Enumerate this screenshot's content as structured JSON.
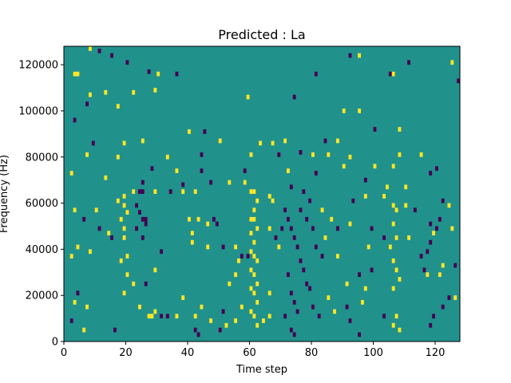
{
  "chart_data": {
    "type": "heatmap",
    "title": "Predicted : La",
    "xlabel": "Time step",
    "ylabel": "Frequency (Hz)",
    "xlim": [
      0,
      128
    ],
    "ylim": [
      0,
      128000
    ],
    "xticks": [
      0,
      20,
      40,
      60,
      80,
      100,
      120
    ],
    "yticks": [
      0,
      20000,
      40000,
      60000,
      80000,
      100000,
      120000
    ],
    "xtick_labels": [
      "0",
      "20",
      "40",
      "60",
      "80",
      "100",
      "120"
    ],
    "ytick_labels": [
      "0",
      "20000",
      "40000",
      "60000",
      "80000",
      "100000",
      "120000"
    ],
    "colors": {
      "background": "#21918c",
      "high": "#fde725",
      "low": "#440154"
    },
    "grid": false,
    "legend": "none",
    "cell_value_range": [
      -1,
      1
    ],
    "bin_height_hz": 2000,
    "cells": [
      {
        "x": 8,
        "y": 126000,
        "v": 1
      },
      {
        "x": 11,
        "y": 125000,
        "v": -1
      },
      {
        "x": 15,
        "y": 123000,
        "v": -1
      },
      {
        "x": 20,
        "y": 120000,
        "v": -1
      },
      {
        "x": 92,
        "y": 123000,
        "v": -1
      },
      {
        "x": 95,
        "y": 123000,
        "v": 1
      },
      {
        "x": 111,
        "y": 120000,
        "v": -1
      },
      {
        "x": 125,
        "y": 120000,
        "v": 1
      },
      {
        "x": 3,
        "y": 115000,
        "v": 1
      },
      {
        "x": 4,
        "y": 115000,
        "v": 1
      },
      {
        "x": 27,
        "y": 116000,
        "v": -1
      },
      {
        "x": 30,
        "y": 115000,
        "v": 1
      },
      {
        "x": 36,
        "y": 115000,
        "v": -1
      },
      {
        "x": 81,
        "y": 115000,
        "v": -1
      },
      {
        "x": 105,
        "y": 115000,
        "v": -1
      },
      {
        "x": 106,
        "y": 115000,
        "v": 1
      },
      {
        "x": 127,
        "y": 112000,
        "v": -1
      },
      {
        "x": 8,
        "y": 106000,
        "v": 1
      },
      {
        "x": 13,
        "y": 107000,
        "v": 1
      },
      {
        "x": 22,
        "y": 107000,
        "v": 1
      },
      {
        "x": 29,
        "y": 108000,
        "v": 1
      },
      {
        "x": 7,
        "y": 102000,
        "v": -1
      },
      {
        "x": 17,
        "y": 101000,
        "v": 1
      },
      {
        "x": 59,
        "y": 105000,
        "v": 1
      },
      {
        "x": 74,
        "y": 105000,
        "v": -1
      },
      {
        "x": 90,
        "y": 99000,
        "v": 1
      },
      {
        "x": 95,
        "y": 99000,
        "v": 1
      },
      {
        "x": 3,
        "y": 95000,
        "v": -1
      },
      {
        "x": 40,
        "y": 90000,
        "v": 1
      },
      {
        "x": 45,
        "y": 90000,
        "v": -1
      },
      {
        "x": 63,
        "y": 85000,
        "v": 1
      },
      {
        "x": 100,
        "y": 91000,
        "v": -1
      },
      {
        "x": 108,
        "y": 91000,
        "v": 1
      },
      {
        "x": 9,
        "y": 85000,
        "v": -1
      },
      {
        "x": 19,
        "y": 85000,
        "v": 1
      },
      {
        "x": 25,
        "y": 86000,
        "v": 1
      },
      {
        "x": 50,
        "y": 86000,
        "v": 1
      },
      {
        "x": 67,
        "y": 85000,
        "v": 1
      },
      {
        "x": 71,
        "y": 86000,
        "v": 1
      },
      {
        "x": 84,
        "y": 86000,
        "v": -1
      },
      {
        "x": 88,
        "y": 86000,
        "v": 1
      },
      {
        "x": 7,
        "y": 80000,
        "v": 1
      },
      {
        "x": 17,
        "y": 79000,
        "v": 1
      },
      {
        "x": 33,
        "y": 79000,
        "v": 1
      },
      {
        "x": 44,
        "y": 80000,
        "v": -1
      },
      {
        "x": 60,
        "y": 80000,
        "v": 1
      },
      {
        "x": 69,
        "y": 80000,
        "v": -1
      },
      {
        "x": 76,
        "y": 81000,
        "v": -1
      },
      {
        "x": 80,
        "y": 80000,
        "v": 1
      },
      {
        "x": 85,
        "y": 80000,
        "v": 1
      },
      {
        "x": 92,
        "y": 79000,
        "v": 1
      },
      {
        "x": 108,
        "y": 80000,
        "v": 1
      },
      {
        "x": 115,
        "y": 80000,
        "v": 1
      },
      {
        "x": 2,
        "y": 72000,
        "v": 1
      },
      {
        "x": 13,
        "y": 70000,
        "v": 1
      },
      {
        "x": 28,
        "y": 74000,
        "v": -1
      },
      {
        "x": 36,
        "y": 73000,
        "v": 1
      },
      {
        "x": 44,
        "y": 73000,
        "v": -1
      },
      {
        "x": 58,
        "y": 73000,
        "v": -1
      },
      {
        "x": 72,
        "y": 73000,
        "v": 1
      },
      {
        "x": 81,
        "y": 72000,
        "v": -1
      },
      {
        "x": 90,
        "y": 75000,
        "v": 1
      },
      {
        "x": 100,
        "y": 75000,
        "v": 1
      },
      {
        "x": 106,
        "y": 75000,
        "v": 1
      },
      {
        "x": 118,
        "y": 72000,
        "v": -1
      },
      {
        "x": 120,
        "y": 74000,
        "v": -1
      },
      {
        "x": 25,
        "y": 68000,
        "v": -1
      },
      {
        "x": 38,
        "y": 67000,
        "v": -1
      },
      {
        "x": 47,
        "y": 68000,
        "v": -1
      },
      {
        "x": 53,
        "y": 68000,
        "v": 1
      },
      {
        "x": 58,
        "y": 68000,
        "v": 1
      },
      {
        "x": 73,
        "y": 66000,
        "v": -1
      },
      {
        "x": 97,
        "y": 69000,
        "v": -1
      },
      {
        "x": 104,
        "y": 66000,
        "v": 1
      },
      {
        "x": 110,
        "y": 66000,
        "v": 1
      },
      {
        "x": 17,
        "y": 60000,
        "v": 1
      },
      {
        "x": 19,
        "y": 62000,
        "v": 1
      },
      {
        "x": 19,
        "y": 58000,
        "v": 1
      },
      {
        "x": 20,
        "y": 55000,
        "v": 1
      },
      {
        "x": 18,
        "y": 52000,
        "v": 1
      },
      {
        "x": 19,
        "y": 48000,
        "v": 1
      },
      {
        "x": 22,
        "y": 64000,
        "v": 1
      },
      {
        "x": 24,
        "y": 64000,
        "v": -1
      },
      {
        "x": 25,
        "y": 64000,
        "v": -1
      },
      {
        "x": 23,
        "y": 58000,
        "v": -1
      },
      {
        "x": 24,
        "y": 55000,
        "v": -1
      },
      {
        "x": 25,
        "y": 52000,
        "v": -1
      },
      {
        "x": 26,
        "y": 52000,
        "v": -1
      },
      {
        "x": 23,
        "y": 48000,
        "v": -1
      },
      {
        "x": 25,
        "y": 44000,
        "v": -1
      },
      {
        "x": 26,
        "y": 50000,
        "v": -1
      },
      {
        "x": 29,
        "y": 64000,
        "v": 1
      },
      {
        "x": 34,
        "y": 64000,
        "v": -1
      },
      {
        "x": 38,
        "y": 64000,
        "v": 1
      },
      {
        "x": 42,
        "y": 64000,
        "v": 1
      },
      {
        "x": 3,
        "y": 56000,
        "v": 1
      },
      {
        "x": 6,
        "y": 52000,
        "v": -1
      },
      {
        "x": 10,
        "y": 56000,
        "v": 1
      },
      {
        "x": 11,
        "y": 48000,
        "v": -1
      },
      {
        "x": 14,
        "y": 46000,
        "v": 1
      },
      {
        "x": 15,
        "y": 44000,
        "v": -1
      },
      {
        "x": 4,
        "y": 40000,
        "v": 1
      },
      {
        "x": 8,
        "y": 38000,
        "v": 1
      },
      {
        "x": 2,
        "y": 36000,
        "v": 1
      },
      {
        "x": 19,
        "y": 44000,
        "v": 1
      },
      {
        "x": 40,
        "y": 52000,
        "v": 1
      },
      {
        "x": 43,
        "y": 52000,
        "v": 1
      },
      {
        "x": 46,
        "y": 50000,
        "v": 1
      },
      {
        "x": 48,
        "y": 52000,
        "v": -1
      },
      {
        "x": 49,
        "y": 50000,
        "v": -1
      },
      {
        "x": 41,
        "y": 46000,
        "v": 1
      },
      {
        "x": 41,
        "y": 42000,
        "v": 1
      },
      {
        "x": 46,
        "y": 40000,
        "v": 1
      },
      {
        "x": 51,
        "y": 40000,
        "v": -1
      },
      {
        "x": 55,
        "y": 40000,
        "v": 1
      },
      {
        "x": 60,
        "y": 64000,
        "v": 1
      },
      {
        "x": 61,
        "y": 64000,
        "v": 1
      },
      {
        "x": 62,
        "y": 60000,
        "v": 1
      },
      {
        "x": 61,
        "y": 56000,
        "v": 1
      },
      {
        "x": 60,
        "y": 52000,
        "v": 1
      },
      {
        "x": 61,
        "y": 52000,
        "v": 1
      },
      {
        "x": 62,
        "y": 48000,
        "v": 1
      },
      {
        "x": 60,
        "y": 46000,
        "v": 1
      },
      {
        "x": 61,
        "y": 42000,
        "v": 1
      },
      {
        "x": 60,
        "y": 38000,
        "v": 1
      },
      {
        "x": 61,
        "y": 36000,
        "v": 1
      },
      {
        "x": 62,
        "y": 34000,
        "v": 1
      },
      {
        "x": 60,
        "y": 30000,
        "v": 1
      },
      {
        "x": 61,
        "y": 28000,
        "v": 1
      },
      {
        "x": 62,
        "y": 24000,
        "v": 1
      },
      {
        "x": 60,
        "y": 22000,
        "v": 1
      },
      {
        "x": 61,
        "y": 20000,
        "v": 1
      },
      {
        "x": 62,
        "y": 16000,
        "v": 1
      },
      {
        "x": 60,
        "y": 12000,
        "v": 1
      },
      {
        "x": 61,
        "y": 10000,
        "v": 1
      },
      {
        "x": 62,
        "y": 6000,
        "v": 1
      },
      {
        "x": 66,
        "y": 62000,
        "v": 1
      },
      {
        "x": 66,
        "y": 48000,
        "v": 1
      },
      {
        "x": 66,
        "y": 20000,
        "v": 1
      },
      {
        "x": 66,
        "y": 10000,
        "v": 1
      },
      {
        "x": 64,
        "y": 8000,
        "v": 1
      },
      {
        "x": 57,
        "y": 36000,
        "v": -1
      },
      {
        "x": 59,
        "y": 36000,
        "v": -1
      },
      {
        "x": 56,
        "y": 34000,
        "v": 1
      },
      {
        "x": 55,
        "y": 28000,
        "v": 1
      },
      {
        "x": 53,
        "y": 24000,
        "v": 1
      },
      {
        "x": 57,
        "y": 14000,
        "v": 1
      },
      {
        "x": 55,
        "y": 8000,
        "v": 1
      },
      {
        "x": 51,
        "y": 12000,
        "v": -1
      },
      {
        "x": 42,
        "y": 10000,
        "v": 1
      },
      {
        "x": 44,
        "y": 14000,
        "v": 1
      },
      {
        "x": 47,
        "y": 8000,
        "v": 1
      },
      {
        "x": 50,
        "y": 4000,
        "v": -1
      },
      {
        "x": 42,
        "y": 4000,
        "v": -1
      },
      {
        "x": 43,
        "y": 2000,
        "v": -1
      },
      {
        "x": 52,
        "y": 6000,
        "v": 1
      },
      {
        "x": 38,
        "y": 18000,
        "v": 1
      },
      {
        "x": 36,
        "y": 10000,
        "v": 1
      },
      {
        "x": 29,
        "y": 12000,
        "v": 1
      },
      {
        "x": 27,
        "y": 10000,
        "v": 1
      },
      {
        "x": 28,
        "y": 10000,
        "v": 1
      },
      {
        "x": 31,
        "y": 10000,
        "v": -1
      },
      {
        "x": 33,
        "y": 10000,
        "v": -1
      },
      {
        "x": 24,
        "y": 14000,
        "v": 1
      },
      {
        "x": 22,
        "y": 24000,
        "v": 1
      },
      {
        "x": 20,
        "y": 28000,
        "v": 1
      },
      {
        "x": 19,
        "y": 20000,
        "v": 1
      },
      {
        "x": 18,
        "y": 34000,
        "v": 1
      },
      {
        "x": 20,
        "y": 36000,
        "v": 1
      },
      {
        "x": 26,
        "y": 24000,
        "v": -1
      },
      {
        "x": 29,
        "y": 30000,
        "v": 1
      },
      {
        "x": 31,
        "y": 38000,
        "v": -1
      },
      {
        "x": 4,
        "y": 20000,
        "v": -1
      },
      {
        "x": 3,
        "y": 16000,
        "v": 1
      },
      {
        "x": 7,
        "y": 14000,
        "v": 1
      },
      {
        "x": 2,
        "y": 8000,
        "v": -1
      },
      {
        "x": 6,
        "y": 4000,
        "v": 1
      },
      {
        "x": 16,
        "y": 4000,
        "v": -1
      },
      {
        "x": 67,
        "y": 60000,
        "v": 1
      },
      {
        "x": 68,
        "y": 44000,
        "v": -1
      },
      {
        "x": 69,
        "y": 40000,
        "v": 1
      },
      {
        "x": 70,
        "y": 48000,
        "v": -1
      },
      {
        "x": 71,
        "y": 56000,
        "v": -1
      },
      {
        "x": 72,
        "y": 52000,
        "v": -1
      },
      {
        "x": 73,
        "y": 48000,
        "v": -1
      },
      {
        "x": 74,
        "y": 44000,
        "v": -1
      },
      {
        "x": 75,
        "y": 40000,
        "v": -1
      },
      {
        "x": 76,
        "y": 34000,
        "v": -1
      },
      {
        "x": 77,
        "y": 30000,
        "v": -1
      },
      {
        "x": 78,
        "y": 24000,
        "v": -1
      },
      {
        "x": 72,
        "y": 28000,
        "v": -1
      },
      {
        "x": 73,
        "y": 20000,
        "v": -1
      },
      {
        "x": 74,
        "y": 16000,
        "v": -1
      },
      {
        "x": 75,
        "y": 12000,
        "v": -1
      },
      {
        "x": 71,
        "y": 10000,
        "v": -1
      },
      {
        "x": 73,
        "y": 4000,
        "v": -1
      },
      {
        "x": 74,
        "y": 2000,
        "v": -1
      },
      {
        "x": 76,
        "y": 56000,
        "v": -1
      },
      {
        "x": 78,
        "y": 52000,
        "v": -1
      },
      {
        "x": 80,
        "y": 48000,
        "v": -1
      },
      {
        "x": 81,
        "y": 40000,
        "v": -1
      },
      {
        "x": 83,
        "y": 36000,
        "v": -1
      },
      {
        "x": 79,
        "y": 22000,
        "v": -1
      },
      {
        "x": 80,
        "y": 14000,
        "v": -1
      },
      {
        "x": 82,
        "y": 10000,
        "v": -1
      },
      {
        "x": 77,
        "y": 64000,
        "v": -1
      },
      {
        "x": 79,
        "y": 60000,
        "v": -1
      },
      {
        "x": 83,
        "y": 56000,
        "v": 1
      },
      {
        "x": 86,
        "y": 52000,
        "v": 1
      },
      {
        "x": 88,
        "y": 48000,
        "v": -1
      },
      {
        "x": 84,
        "y": 44000,
        "v": 1
      },
      {
        "x": 88,
        "y": 36000,
        "v": 1
      },
      {
        "x": 91,
        "y": 24000,
        "v": 1
      },
      {
        "x": 85,
        "y": 18000,
        "v": 1
      },
      {
        "x": 87,
        "y": 12000,
        "v": 1
      },
      {
        "x": 91,
        "y": 14000,
        "v": -1
      },
      {
        "x": 92,
        "y": 8000,
        "v": -1
      },
      {
        "x": 95,
        "y": 2000,
        "v": -1
      },
      {
        "x": 95,
        "y": 28000,
        "v": -1
      },
      {
        "x": 97,
        "y": 22000,
        "v": 1
      },
      {
        "x": 98,
        "y": 40000,
        "v": 1
      },
      {
        "x": 99,
        "y": 48000,
        "v": -1
      },
      {
        "x": 92,
        "y": 50000,
        "v": 1
      },
      {
        "x": 93,
        "y": 60000,
        "v": -1
      },
      {
        "x": 97,
        "y": 62000,
        "v": 1
      },
      {
        "x": 103,
        "y": 62000,
        "v": 1
      },
      {
        "x": 106,
        "y": 58000,
        "v": 1
      },
      {
        "x": 107,
        "y": 56000,
        "v": 1
      },
      {
        "x": 106,
        "y": 50000,
        "v": 1
      },
      {
        "x": 107,
        "y": 44000,
        "v": 1
      },
      {
        "x": 105,
        "y": 40000,
        "v": 1
      },
      {
        "x": 106,
        "y": 34000,
        "v": 1
      },
      {
        "x": 107,
        "y": 30000,
        "v": 1
      },
      {
        "x": 108,
        "y": 26000,
        "v": 1
      },
      {
        "x": 106,
        "y": 22000,
        "v": 1
      },
      {
        "x": 107,
        "y": 10000,
        "v": 1
      },
      {
        "x": 106,
        "y": 6000,
        "v": 1
      },
      {
        "x": 108,
        "y": 4000,
        "v": 1
      },
      {
        "x": 103,
        "y": 10000,
        "v": -1
      },
      {
        "x": 103,
        "y": 44000,
        "v": -1
      },
      {
        "x": 111,
        "y": 44000,
        "v": 1
      },
      {
        "x": 113,
        "y": 56000,
        "v": -1
      },
      {
        "x": 115,
        "y": 36000,
        "v": -1
      },
      {
        "x": 116,
        "y": 30000,
        "v": -1
      },
      {
        "x": 117,
        "y": 28000,
        "v": 1
      },
      {
        "x": 118,
        "y": 42000,
        "v": -1
      },
      {
        "x": 120,
        "y": 48000,
        "v": -1
      },
      {
        "x": 121,
        "y": 52000,
        "v": -1
      },
      {
        "x": 122,
        "y": 60000,
        "v": -1
      },
      {
        "x": 119,
        "y": 46000,
        "v": 1
      },
      {
        "x": 117,
        "y": 38000,
        "v": -1
      },
      {
        "x": 121,
        "y": 28000,
        "v": 1
      },
      {
        "x": 122,
        "y": 32000,
        "v": 1
      },
      {
        "x": 126,
        "y": 32000,
        "v": -1
      },
      {
        "x": 125,
        "y": 48000,
        "v": 1
      },
      {
        "x": 124,
        "y": 58000,
        "v": 1
      },
      {
        "x": 110,
        "y": 58000,
        "v": 1
      },
      {
        "x": 118,
        "y": 50000,
        "v": -1
      },
      {
        "x": 124,
        "y": 18000,
        "v": -1
      },
      {
        "x": 126,
        "y": 18000,
        "v": 1
      },
      {
        "x": 119,
        "y": 10000,
        "v": -1
      },
      {
        "x": 118,
        "y": 6000,
        "v": -1
      },
      {
        "x": 122,
        "y": 14000,
        "v": -1
      },
      {
        "x": 96,
        "y": 16000,
        "v": 1
      },
      {
        "x": 99,
        "y": 30000,
        "v": -1
      }
    ]
  }
}
